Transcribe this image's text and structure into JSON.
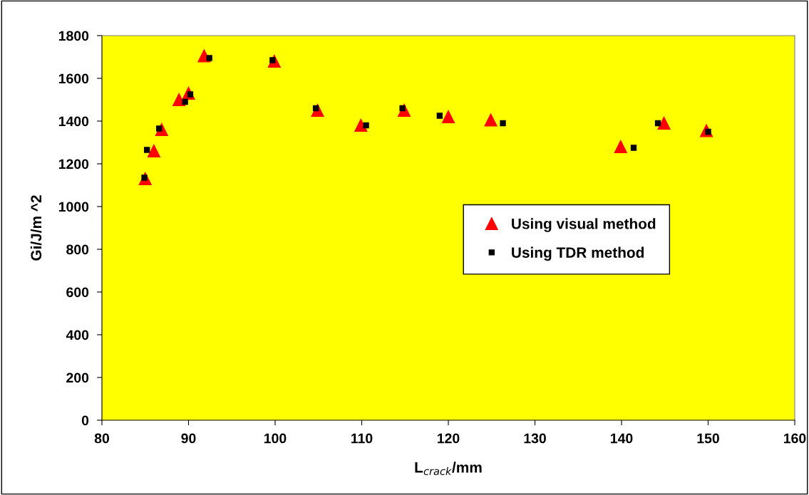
{
  "chart_data": {
    "type": "scatter",
    "xlabel": "L$_{crack}$/mm",
    "ylabel": "Gi/J/m ^2",
    "xlim": [
      80,
      160
    ],
    "xticks": [
      80,
      90,
      100,
      110,
      120,
      130,
      140,
      150,
      160
    ],
    "ylim": [
      0,
      1800
    ],
    "yticks": [
      0,
      200,
      400,
      600,
      800,
      1000,
      1200,
      1400,
      1600,
      1800
    ],
    "grid": false,
    "legend": "center right",
    "series": [
      {
        "name": "Using visual method",
        "color": "#ff0000",
        "marker": "triangle",
        "x": [
          85,
          86,
          86.9,
          88.9,
          90,
          91.8,
          99.9,
          104.9,
          109.9,
          114.9,
          120,
          124.9,
          139.9,
          144.9,
          149.8
        ],
        "values": [
          1130,
          1260,
          1360,
          1500,
          1530,
          1705,
          1680,
          1450,
          1380,
          1450,
          1420,
          1405,
          1280,
          1390,
          1355
        ]
      },
      {
        "name": "Using TDR method",
        "color": "#000000",
        "marker": "square",
        "x": [
          84.9,
          85.2,
          86.6,
          89.6,
          90.2,
          92.4,
          99.7,
          104.7,
          110.5,
          114.7,
          119,
          126.3,
          141.4,
          144.2,
          150
        ],
        "values": [
          1135,
          1265,
          1365,
          1490,
          1525,
          1695,
          1685,
          1460,
          1380,
          1460,
          1425,
          1390,
          1275,
          1390,
          1350
        ]
      }
    ]
  }
}
